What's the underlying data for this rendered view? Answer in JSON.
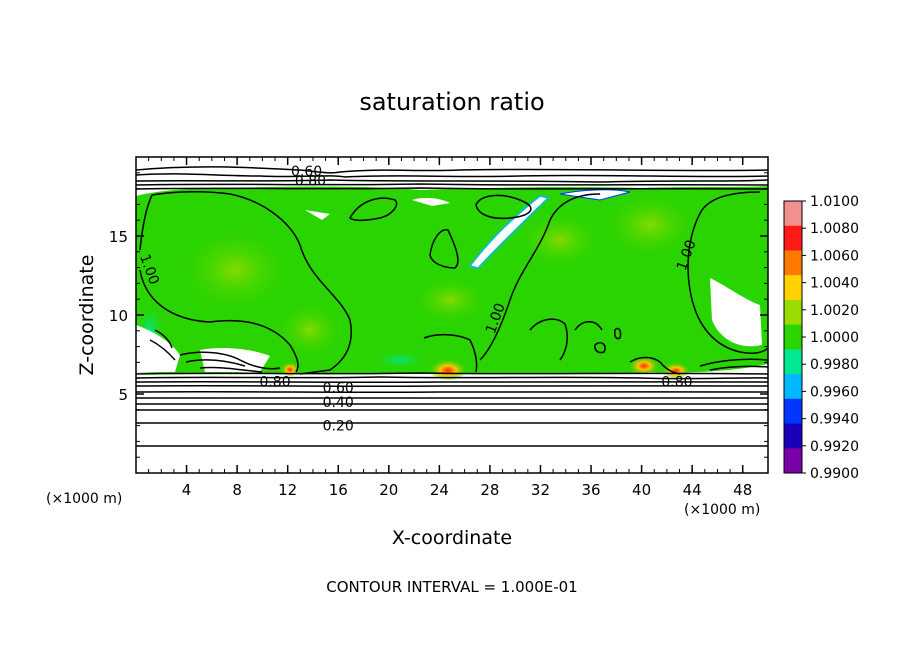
{
  "chart_data": {
    "type": "heatmap",
    "title": "saturation ratio",
    "xlabel": "X-coordinate",
    "ylabel": "Z-coordinate",
    "x_unit_left": "(×1000 m)",
    "x_unit_right": "(×1000 m)",
    "footer": "CONTOUR INTERVAL = 1.000E-01",
    "xlim": [
      0,
      50
    ],
    "ylim": [
      0,
      20
    ],
    "xticks": [
      "4",
      "8",
      "12",
      "16",
      "20",
      "24",
      "28",
      "32",
      "36",
      "40",
      "44",
      "48"
    ],
    "yticks": [
      "5",
      "10",
      "15"
    ],
    "colorbar": {
      "labels": [
        "1.0100",
        "1.0080",
        "1.0060",
        "1.0040",
        "1.0020",
        "1.0000",
        "0.9980",
        "0.9960",
        "0.9940",
        "0.9920",
        "0.9900"
      ],
      "colors": [
        "#f28f8f",
        "#ff1a1a",
        "#ff7a00",
        "#ffd200",
        "#9bdc00",
        "#2ad400",
        "#00e890",
        "#00b8ff",
        "#0036ff",
        "#1a00b8",
        "#7a00a8"
      ]
    },
    "contour_interval": 0.1,
    "contour_labels": [
      {
        "text": "0.60",
        "x": 13.5,
        "z": 19.1
      },
      {
        "text": "0.80",
        "x": 13.8,
        "z": 18.5
      },
      {
        "text": "1.00",
        "x": 1.1,
        "z": 12.9
      },
      {
        "text": "1.00",
        "x": 28.4,
        "z": 9.8
      },
      {
        "text": "1.00",
        "x": 43.5,
        "z": 13.8
      },
      {
        "text": "0.80",
        "x": 11.0,
        "z": 5.8
      },
      {
        "text": "0.60",
        "x": 16.0,
        "z": 5.4
      },
      {
        "text": "0.40",
        "x": 16.0,
        "z": 4.5
      },
      {
        "text": "0.20",
        "x": 16.0,
        "z": 3.0
      },
      {
        "text": "0.80",
        "x": 42.8,
        "z": 5.8
      }
    ]
  }
}
